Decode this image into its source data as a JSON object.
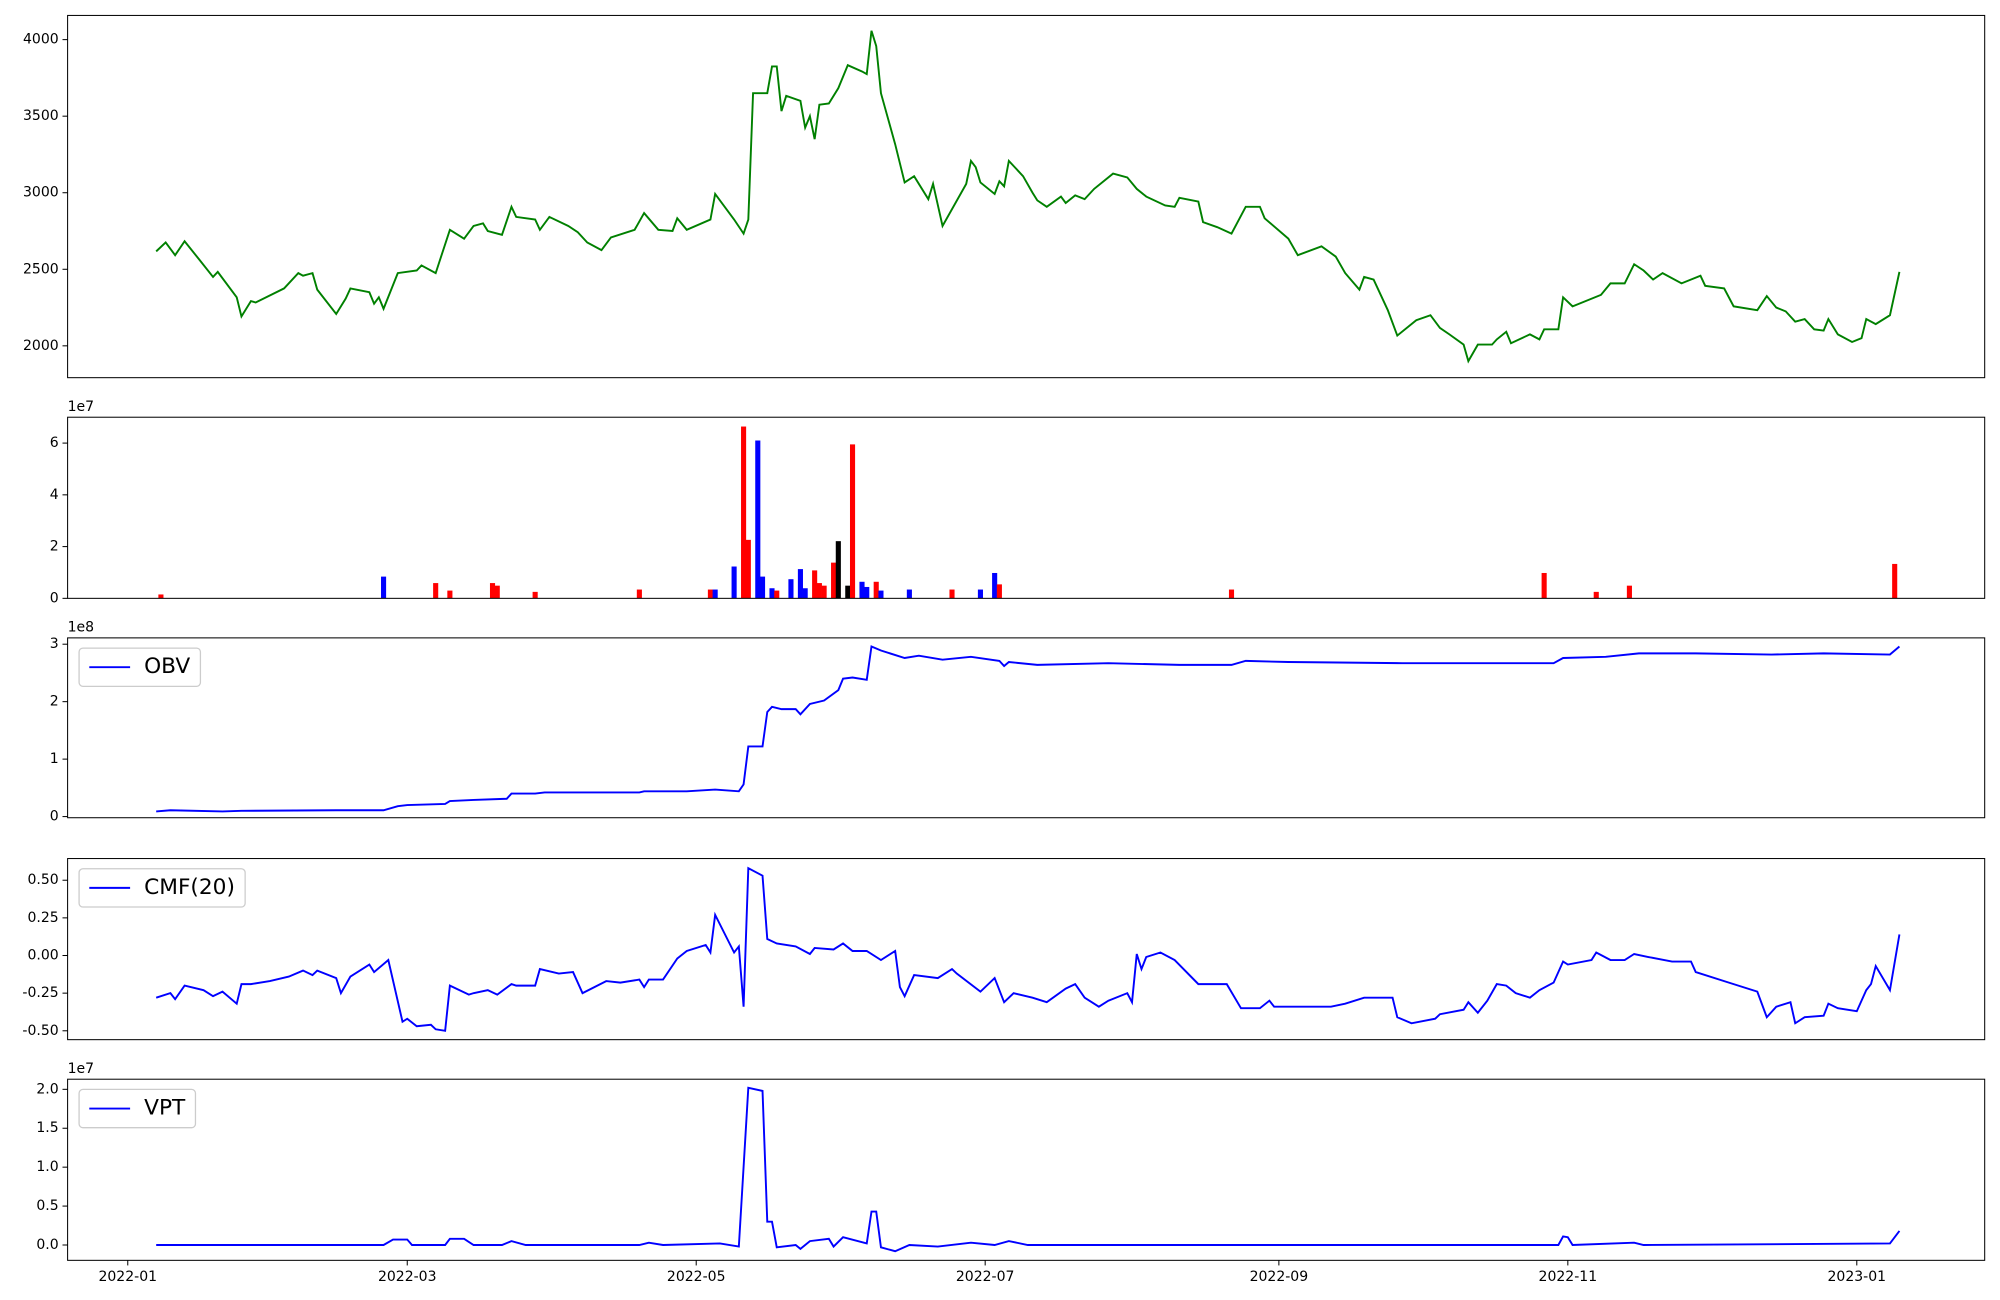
{
  "chart_data": [
    {
      "type": "line",
      "color": "green",
      "x": [
        6,
        8,
        10,
        12,
        15,
        18,
        19,
        23,
        24,
        26,
        27,
        33,
        36,
        37,
        39,
        40,
        44,
        46,
        47,
        51,
        52,
        53,
        54,
        57,
        61,
        62,
        65,
        68,
        71,
        73,
        75,
        76,
        79,
        81,
        82,
        86,
        87,
        89,
        93,
        95,
        97,
        100,
        102,
        107,
        109,
        112,
        115,
        116,
        118,
        123,
        124,
        128,
        130,
        131,
        132,
        135,
        136,
        137,
        138,
        139,
        142,
        143,
        144,
        145,
        146,
        148,
        150,
        152,
        155,
        156,
        157,
        158,
        159,
        162,
        164,
        166,
        169,
        170,
        172,
        177,
        178,
        179,
        180,
        183,
        184,
        185,
        186,
        189,
        191,
        192,
        194,
        197,
        198,
        200,
        202,
        204,
        208,
        211,
        213,
        215,
        219,
        221,
        222,
        226,
        227,
        230,
        233,
        236,
        239,
        240,
        245,
        247,
        252,
        255,
        257,
        260,
        261,
        263,
        266,
        268,
        272,
        275,
        277,
        279,
        282,
        283,
        285,
        288,
        289,
        291,
        292,
        296,
        298,
        299,
        302,
        303,
        305,
        311,
        313,
        316,
        318,
        320,
        322,
        324,
        328,
        332,
        333,
        337,
        339,
        344,
        346,
        348,
        350,
        352,
        354,
        356,
        358,
        359,
        361,
        364,
        366,
        367,
        369,
        372,
        374
      ],
      "values": [
        2617,
        2675,
        2592,
        2683,
        2567,
        2450,
        2483,
        2317,
        2192,
        2292,
        2283,
        2375,
        2475,
        2458,
        2475,
        2367,
        2208,
        2308,
        2375,
        2350,
        2275,
        2317,
        2242,
        2475,
        2492,
        2525,
        2475,
        2758,
        2700,
        2783,
        2800,
        2750,
        2725,
        2908,
        2842,
        2825,
        2758,
        2842,
        2783,
        2742,
        2675,
        2625,
        2708,
        2758,
        2867,
        2758,
        2750,
        2833,
        2758,
        2825,
        2992,
        2825,
        2733,
        2825,
        3650,
        3650,
        3825,
        3825,
        3533,
        3633,
        3600,
        3425,
        3500,
        3350,
        3575,
        3583,
        3683,
        3833,
        3792,
        3775,
        4058,
        3958,
        3650,
        3317,
        3067,
        3108,
        2958,
        3058,
        2783,
        3058,
        3208,
        3167,
        3067,
        2992,
        3075,
        3042,
        3208,
        3108,
        3000,
        2950,
        2908,
        2975,
        2933,
        2983,
        2958,
        3025,
        3125,
        3100,
        3025,
        2975,
        2917,
        2908,
        2967,
        2942,
        2808,
        2775,
        2733,
        2908,
        2908,
        2833,
        2700,
        2592,
        2650,
        2583,
        2475,
        2367,
        2450,
        2433,
        2233,
        2067,
        2167,
        2200,
        2117,
        2075,
        2008,
        1900,
        2008,
        2008,
        2042,
        2092,
        2017,
        2075,
        2042,
        2108,
        2108,
        2317,
        2258,
        2333,
        2408,
        2408,
        2533,
        2492,
        2433,
        2475,
        2408,
        2458,
        2392,
        2375,
        2258,
        2233,
        2325,
        2250,
        2225,
        2158,
        2175,
        2108,
        2100,
        2175,
        2075,
        2025,
        2050,
        2175,
        2142,
        2200,
        2483
      ],
      "xlim": [
        -12.7,
        392
      ],
      "ylim": [
        1792,
        4158
      ],
      "yticks": [
        2000,
        2500,
        3000,
        3500,
        4000
      ]
    },
    {
      "type": "bar",
      "offset_text": "1e7",
      "x": [
        7,
        54,
        65,
        68,
        77,
        78,
        86,
        108,
        123,
        124,
        128,
        130,
        131,
        133,
        134,
        136,
        137,
        140,
        142,
        143,
        145,
        146,
        147,
        149,
        150,
        152,
        153,
        155,
        156,
        158,
        159,
        165,
        174,
        180,
        183,
        184,
        233,
        299,
        310,
        317,
        373
      ],
      "values": [
        1500000,
        8400000,
        5900000,
        3000000,
        5900000,
        4900000,
        2500000,
        3400000,
        3400000,
        3400000,
        12300000,
        66400000,
        22600000,
        61000000,
        8400000,
        3900000,
        3000000,
        7400000,
        11300000,
        3900000,
        10800000,
        5900000,
        4900000,
        13800000,
        22100000,
        4900000,
        59500000,
        6400000,
        4400000,
        6400000,
        3000000,
        3400000,
        3400000,
        3400000,
        9800000,
        5400000,
        3400000,
        9800000,
        2500000,
        4900000,
        13300000
      ],
      "colors": [
        "red",
        "blue",
        "red",
        "red",
        "red",
        "red",
        "red",
        "red",
        "red",
        "blue",
        "blue",
        "red",
        "red",
        "blue",
        "blue",
        "blue",
        "red",
        "blue",
        "blue",
        "blue",
        "red",
        "red",
        "red",
        "red",
        "black",
        "black",
        "red",
        "blue",
        "blue",
        "red",
        "blue",
        "blue",
        "red",
        "blue",
        "blue",
        "red",
        "red",
        "red",
        "red",
        "red",
        "red"
      ],
      "xlim": [
        -12.7,
        392
      ],
      "ylim": [
        0,
        70000000
      ],
      "yticks": [
        0,
        {
          "value": 20000000,
          "label": "2"
        },
        {
          "value": 40000000,
          "label": "4"
        },
        {
          "value": 60000000,
          "label": "6"
        }
      ]
    },
    {
      "type": "line",
      "legend": "upper left",
      "offset_text": "1e8",
      "x": [
        6,
        9,
        20,
        24,
        44,
        54,
        57,
        59,
        67,
        68,
        73,
        80,
        81,
        86,
        88,
        108,
        109,
        118,
        124,
        129,
        130,
        131,
        134,
        135,
        136,
        138,
        141,
        142,
        144,
        147,
        150,
        151,
        153,
        156,
        157,
        159,
        164,
        167,
        172,
        178,
        184,
        185,
        186,
        192,
        207,
        222,
        233,
        236,
        245,
        269,
        301,
        303,
        312,
        319,
        331,
        347,
        358,
        372,
        374
      ],
      "series": [
        {
          "name": "OBV",
          "color": "blue",
          "values": [
            9000000,
            11000000,
            9000000,
            10000000,
            11000000,
            11000000,
            18000000,
            20000000,
            22000000,
            27000000,
            29000000,
            31000000,
            40000000,
            40000000,
            42000000,
            42000000,
            44000000,
            44000000,
            47000000,
            44000000,
            56000000,
            122000000,
            122000000,
            182000000,
            191000000,
            187000000,
            187000000,
            178000000,
            196000000,
            202000000,
            220000000,
            240000000,
            242000000,
            238000000,
            296000000,
            289000000,
            276000000,
            280000000,
            273000000,
            278000000,
            271000000,
            262000000,
            269000000,
            264000000,
            267000000,
            264000000,
            264000000,
            271000000,
            269000000,
            267000000,
            267000000,
            276000000,
            278000000,
            284000000,
            284000000,
            282000000,
            284000000,
            282000000,
            296000000
          ]
        }
      ],
      "xlim": [
        -12.7,
        392
      ],
      "ylim": [
        -2000000,
        311000000
      ],
      "yticks": [
        0,
        {
          "value": 100000000,
          "label": "1"
        },
        {
          "value": 200000000,
          "label": "2"
        },
        {
          "value": 300000000,
          "label": "3"
        }
      ]
    },
    {
      "type": "line",
      "legend": "upper left",
      "x": [
        6,
        9,
        10,
        12,
        16,
        18,
        20,
        23,
        24,
        26,
        30,
        34,
        37,
        39,
        40,
        44,
        45,
        47,
        51,
        52,
        55,
        58,
        59,
        61,
        64,
        65,
        67,
        68,
        72,
        73,
        76,
        78,
        81,
        82,
        86,
        87,
        91,
        94,
        96,
        101,
        104,
        108,
        109,
        110,
        113,
        116,
        118,
        122,
        123,
        124,
        128,
        129,
        130,
        131,
        134,
        135,
        137,
        141,
        144,
        145,
        149,
        151,
        153,
        156,
        159,
        162,
        163,
        164,
        166,
        171,
        174,
        175,
        180,
        183,
        185,
        187,
        191,
        194,
        198,
        200,
        202,
        205,
        207,
        211,
        212,
        213,
        214,
        215,
        218,
        221,
        226,
        232,
        235,
        239,
        241,
        242,
        246,
        254,
        257,
        261,
        263,
        267,
        268,
        271,
        276,
        277,
        282,
        283,
        285,
        287,
        289,
        291,
        293,
        296,
        298,
        301,
        303,
        304,
        309,
        310,
        313,
        316,
        318,
        321,
        326,
        330,
        331,
        338,
        344,
        346,
        348,
        351,
        352,
        354,
        358,
        359,
        361,
        365,
        367,
        368,
        369,
        372,
        374
      ],
      "series": [
        {
          "name": "CMF(20)",
          "color": "blue",
          "values": [
            -0.28,
            -0.25,
            -0.29,
            -0.2,
            -0.23,
            -0.27,
            -0.24,
            -0.32,
            -0.19,
            -0.19,
            -0.17,
            -0.14,
            -0.1,
            -0.13,
            -0.1,
            -0.15,
            -0.25,
            -0.14,
            -0.06,
            -0.11,
            -0.03,
            -0.44,
            -0.42,
            -0.47,
            -0.46,
            -0.49,
            -0.5,
            -0.2,
            -0.26,
            -0.25,
            -0.23,
            -0.26,
            -0.19,
            -0.2,
            -0.2,
            -0.09,
            -0.12,
            -0.11,
            -0.25,
            -0.17,
            -0.18,
            -0.16,
            -0.21,
            -0.16,
            -0.16,
            -0.02,
            0.03,
            0.07,
            0.02,
            0.27,
            0.02,
            0.06,
            -0.34,
            0.58,
            0.53,
            0.11,
            0.08,
            0.06,
            0.01,
            0.05,
            0.04,
            0.08,
            0.03,
            0.03,
            -0.03,
            0.03,
            -0.21,
            -0.27,
            -0.13,
            -0.15,
            -0.09,
            -0.12,
            -0.24,
            -0.15,
            -0.31,
            -0.25,
            -0.28,
            -0.31,
            -0.22,
            -0.19,
            -0.28,
            -0.34,
            -0.3,
            -0.25,
            -0.31,
            0.01,
            -0.09,
            -0.01,
            0.02,
            -0.03,
            -0.19,
            -0.19,
            -0.35,
            -0.35,
            -0.3,
            -0.34,
            -0.34,
            -0.34,
            -0.32,
            -0.28,
            -0.28,
            -0.28,
            -0.41,
            -0.45,
            -0.42,
            -0.39,
            -0.36,
            -0.31,
            -0.38,
            -0.3,
            -0.19,
            -0.2,
            -0.25,
            -0.28,
            -0.23,
            -0.18,
            -0.04,
            -0.06,
            -0.03,
            0.02,
            -0.03,
            -0.03,
            0.01,
            -0.01,
            -0.04,
            -0.04,
            -0.11,
            -0.18,
            -0.24,
            -0.41,
            -0.34,
            -0.31,
            -0.45,
            -0.41,
            -0.4,
            -0.32,
            -0.35,
            -0.37,
            -0.23,
            -0.19,
            -0.07,
            -0.23,
            0.14
          ]
        }
      ],
      "xlim": [
        -12.7,
        392
      ],
      "ylim": [
        -0.559,
        0.644
      ],
      "yticks": [
        {
          "value": -0.5,
          "label": "-0.50"
        },
        {
          "value": -0.25,
          "label": "-0.25"
        },
        {
          "value": 0,
          "label": "0.00"
        },
        {
          "value": 0.25,
          "label": "0.25"
        },
        {
          "value": 0.5,
          "label": "0.50"
        }
      ]
    },
    {
      "type": "line",
      "legend": "upper left",
      "offset_text": "1e7",
      "x": [
        6,
        20,
        54,
        56,
        59,
        60,
        67,
        68,
        71,
        73,
        79,
        81,
        84,
        108,
        110,
        113,
        125,
        129,
        131,
        134,
        135,
        136,
        137,
        141,
        142,
        144,
        148,
        149,
        151,
        156,
        157,
        158,
        159,
        162,
        165,
        171,
        178,
        183,
        186,
        190,
        242,
        302,
        303,
        304,
        305,
        318,
        320,
        372,
        374
      ],
      "series": [
        {
          "name": "VPT",
          "color": "blue",
          "values": [
            0,
            0,
            0,
            700000,
            700000,
            0,
            0,
            800000,
            800000,
            0,
            0,
            500000,
            0,
            0,
            300000,
            0,
            200000,
            -200000,
            20200000,
            19800000,
            3000000,
            3000000,
            -300000,
            0,
            -500000,
            500000,
            800000,
            -200000,
            1000000,
            200000,
            4300000,
            4300000,
            -300000,
            -800000,
            0,
            -200000,
            300000,
            0,
            500000,
            0,
            0,
            0,
            1100000,
            1000000,
            0,
            300000,
            0,
            200000,
            1800000
          ]
        }
      ],
      "xlim": [
        -12.7,
        392
      ],
      "ylim": [
        -1970000,
        21300000
      ],
      "yticks": [
        {
          "value": 0,
          "label": "0.0"
        },
        {
          "value": 5000000,
          "label": "0.5"
        },
        {
          "value": 10000000,
          "label": "1.0"
        },
        {
          "value": 15000000,
          "label": "1.5"
        },
        {
          "value": 20000000,
          "label": "2.0"
        }
      ],
      "xticks": [
        {
          "value": 0,
          "label": "2022-01"
        },
        {
          "value": 59,
          "label": "2022-03"
        },
        {
          "value": 120,
          "label": "2022-05"
        },
        {
          "value": 181,
          "label": "2022-07"
        },
        {
          "value": 243,
          "label": "2022-09"
        },
        {
          "value": 304,
          "label": "2022-11"
        },
        {
          "value": 365,
          "label": "2023-01"
        }
      ]
    }
  ]
}
